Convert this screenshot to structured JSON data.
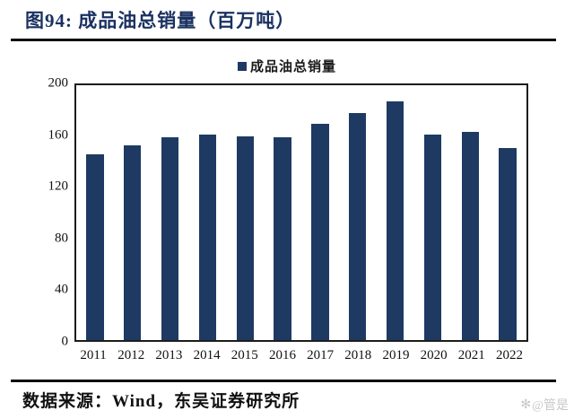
{
  "header": {
    "title": "图94:  成品油总销量（百万吨）"
  },
  "legend": {
    "label": "成品油总销量"
  },
  "chart_data": {
    "type": "bar",
    "title": "成品油总销量（百万吨）",
    "series_name": "成品油总销量",
    "categories": [
      "2011",
      "2012",
      "2013",
      "2014",
      "2015",
      "2016",
      "2017",
      "2018",
      "2019",
      "2020",
      "2021",
      "2022"
    ],
    "values": [
      145.5,
      153,
      159.5,
      161,
      160,
      159.5,
      170,
      178.5,
      187.5,
      161,
      163.5,
      150.5
    ],
    "xlabel": "",
    "ylabel": "",
    "ylim": [
      0,
      200
    ],
    "y_ticks": [
      200,
      160,
      120,
      80,
      40,
      0
    ],
    "grid": false,
    "legend_position": "top",
    "bar_color": "#1e3a63",
    "plot_border_color": "#1c1c1c"
  },
  "footer": {
    "source": "数据来源：Wind，东吴证券研究所",
    "watermark_icon": "✻",
    "watermark_text": "@管是"
  }
}
